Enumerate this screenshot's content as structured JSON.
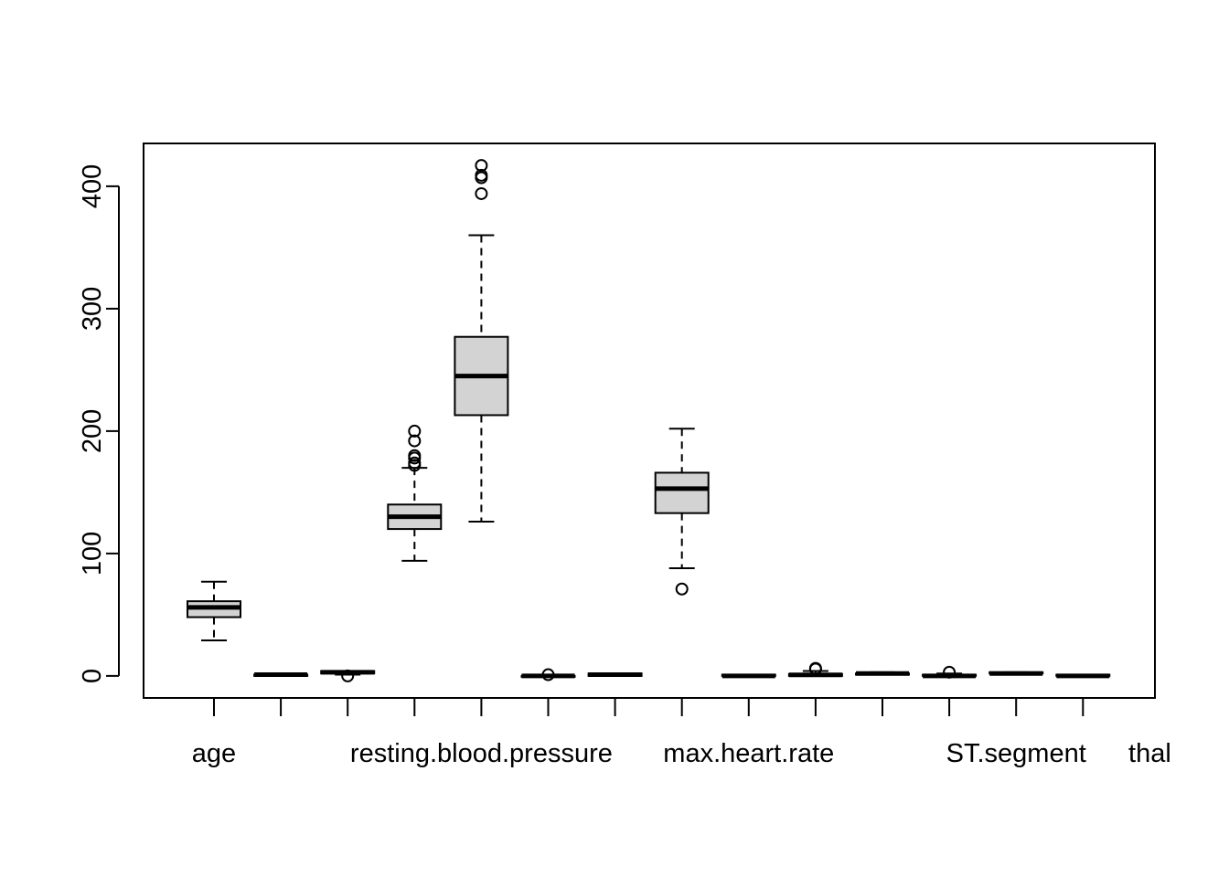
{
  "chart_data": {
    "type": "boxplot",
    "title": "",
    "xlabel": "",
    "ylabel": "",
    "ylim": [
      -18,
      435
    ],
    "y_ticks": [
      0,
      100,
      200,
      300,
      400
    ],
    "y_tick_labels": [
      "0",
      "100",
      "200",
      "300",
      "400"
    ],
    "grid": false,
    "legend": "none",
    "box_fill": "#d3d3d3",
    "line_color": "#000000",
    "x_tick_labels": [
      "age",
      "",
      "resting.blood.pressure",
      "",
      "max.heart.rate",
      "",
      "ST.segment",
      "thal"
    ],
    "categories": [
      {
        "min": 29,
        "q1": 48,
        "median": 56,
        "q3": 61,
        "max": 77,
        "outliers": []
      },
      {
        "min": 0,
        "q1": 0,
        "median": 1,
        "q3": 1,
        "max": 1,
        "outliers": []
      },
      {
        "min": 1,
        "q1": 2,
        "median": 3,
        "q3": 4,
        "max": 4,
        "outliers": [
          0
        ]
      },
      {
        "min": 94,
        "q1": 120,
        "median": 130,
        "q3": 140,
        "max": 170,
        "outliers": [
          172,
          174,
          178,
          180,
          192,
          200
        ]
      },
      {
        "min": 126,
        "q1": 213,
        "median": 245,
        "q3": 277,
        "max": 360,
        "outliers": [
          394,
          407,
          409,
          417
        ]
      },
      {
        "min": 0,
        "q1": 0,
        "median": 0,
        "q3": 0,
        "max": 0,
        "outliers": [
          1
        ]
      },
      {
        "min": 0,
        "q1": 0,
        "median": 1,
        "q3": 2,
        "max": 2,
        "outliers": []
      },
      {
        "min": 88,
        "q1": 133,
        "median": 153,
        "q3": 166,
        "max": 202,
        "outliers": [
          71
        ]
      },
      {
        "min": 0,
        "q1": 0,
        "median": 0,
        "q3": 1,
        "max": 1,
        "outliers": []
      },
      {
        "min": 0,
        "q1": 0,
        "median": 0.8,
        "q3": 1.6,
        "max": 4,
        "outliers": [
          5.6,
          6.2
        ]
      },
      {
        "min": 1,
        "q1": 1,
        "median": 2,
        "q3": 2,
        "max": 3,
        "outliers": []
      },
      {
        "min": 0,
        "q1": 0,
        "median": 0,
        "q3": 1,
        "max": 2,
        "outliers": [
          3
        ]
      },
      {
        "min": 1,
        "q1": 2,
        "median": 2,
        "q3": 3,
        "max": 3,
        "outliers": []
      },
      {
        "min": 0,
        "q1": 0,
        "median": 0,
        "q3": 1,
        "max": 1,
        "outliers": []
      }
    ]
  }
}
